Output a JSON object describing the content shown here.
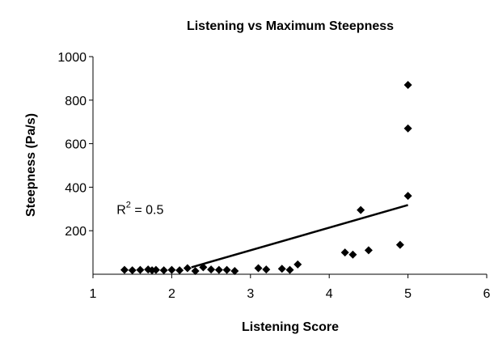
{
  "chart_data": {
    "type": "scatter",
    "title": "Listening vs Maximum Steepness",
    "xlabel": "Listening Score",
    "ylabel": "Steepness (Pa/s)",
    "xlim": [
      1,
      6
    ],
    "ylim": [
      0,
      1000
    ],
    "x_ticks": [
      1,
      2,
      3,
      4,
      5,
      6
    ],
    "y_ticks": [
      200,
      400,
      600,
      800,
      1000
    ],
    "grid": false,
    "legend": "none",
    "marker": "diamond",
    "series": [
      {
        "points": [
          [
            1.4,
            20
          ],
          [
            1.5,
            18
          ],
          [
            1.6,
            20
          ],
          [
            1.7,
            22
          ],
          [
            1.75,
            18
          ],
          [
            1.8,
            20
          ],
          [
            1.9,
            18
          ],
          [
            2.0,
            20
          ],
          [
            2.1,
            18
          ],
          [
            2.2,
            28
          ],
          [
            2.3,
            15
          ],
          [
            2.4,
            32
          ],
          [
            2.5,
            22
          ],
          [
            2.6,
            20
          ],
          [
            2.7,
            20
          ],
          [
            2.8,
            15
          ],
          [
            3.1,
            28
          ],
          [
            3.2,
            22
          ],
          [
            3.4,
            25
          ],
          [
            3.5,
            20
          ],
          [
            3.6,
            45
          ],
          [
            4.2,
            100
          ],
          [
            4.3,
            90
          ],
          [
            4.4,
            295
          ],
          [
            4.5,
            110
          ],
          [
            4.9,
            135
          ],
          [
            5.0,
            360
          ],
          [
            5.0,
            670
          ],
          [
            5.0,
            870
          ]
        ]
      }
    ],
    "trendline": {
      "x": [
        2.25,
        5.0
      ],
      "y": [
        32,
        318
      ]
    },
    "annotation": {
      "prefix": "R",
      "superscript": "2",
      "suffix": " = 0.5",
      "at": [
        1.3,
        300
      ]
    },
    "colors": {
      "marker": "#000000",
      "line": "#000000",
      "axis": "#000000"
    }
  }
}
